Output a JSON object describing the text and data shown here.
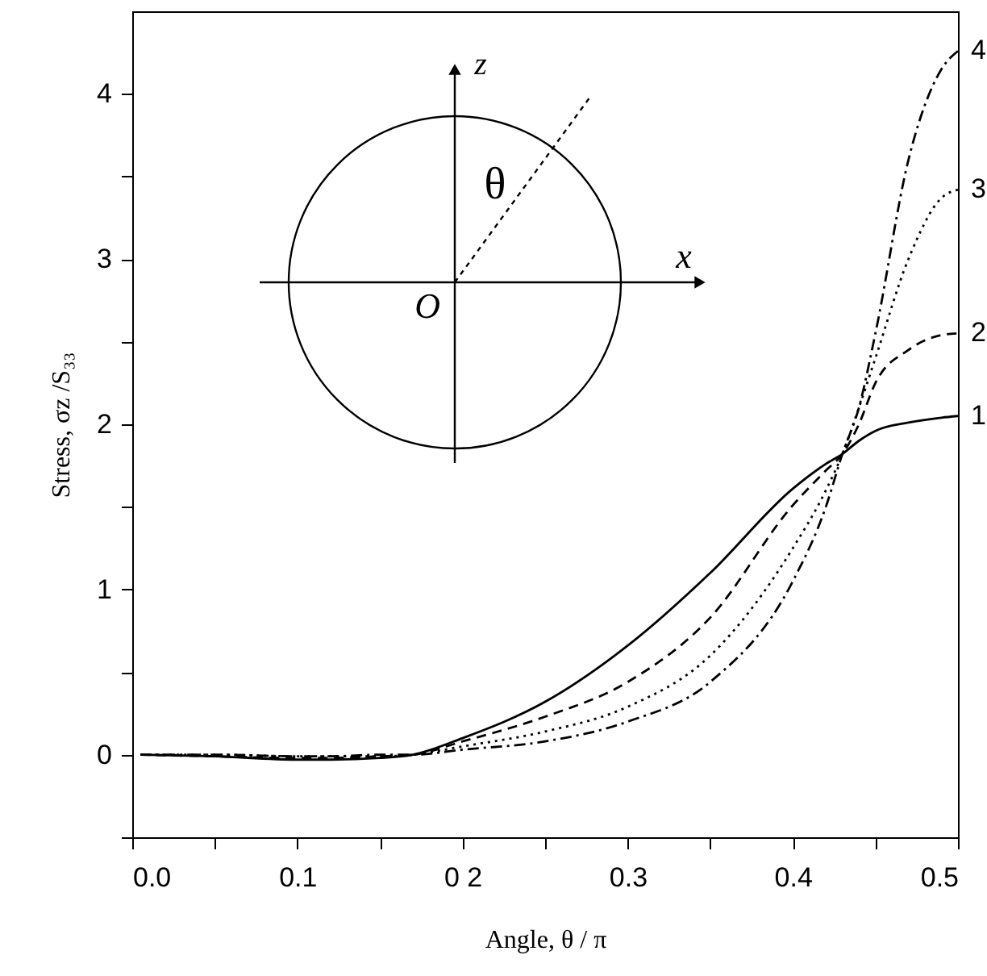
{
  "chart_data": {
    "type": "line",
    "xlabel": "Angle, θ / π",
    "ylabel": "Stress, σz /S₃₃",
    "x": [
      0.005,
      0.05,
      0.1,
      0.12,
      0.15,
      0.17,
      0.2,
      0.25,
      0.3,
      0.35,
      0.4,
      0.42,
      0.43,
      0.44,
      0.45,
      0.47,
      0.49,
      0.5
    ],
    "series": [
      {
        "name": "1",
        "color": "#000000",
        "line_style": "solid",
        "values": [
          0,
          -0.01,
          -0.03,
          -0.03,
          -0.02,
          0,
          0.1,
          0.32,
          0.66,
          1.1,
          1.61,
          1.76,
          1.82,
          1.9,
          1.96,
          2.01,
          2.04,
          2.05
        ]
      },
      {
        "name": "2",
        "color": "#000000",
        "line_style": "dashed",
        "values": [
          0,
          -0.01,
          -0.02,
          -0.02,
          -0.01,
          0,
          0.08,
          0.23,
          0.44,
          0.83,
          1.51,
          1.72,
          1.82,
          2.0,
          2.25,
          2.45,
          2.54,
          2.55
        ]
      },
      {
        "name": "3",
        "color": "#000000",
        "line_style": "dotted",
        "values": [
          0,
          0,
          -0.01,
          -0.01,
          -0.01,
          0,
          0.05,
          0.14,
          0.29,
          0.6,
          1.25,
          1.6,
          1.82,
          2.1,
          2.4,
          3.0,
          3.37,
          3.42
        ]
      },
      {
        "name": "4",
        "color": "#000000",
        "line_style": "dashdot",
        "values": [
          0,
          0,
          -0.01,
          -0.01,
          0,
          0,
          0.03,
          0.08,
          0.2,
          0.44,
          1.05,
          1.5,
          1.82,
          2.1,
          2.55,
          3.6,
          4.15,
          4.26
        ]
      }
    ],
    "xlim": [
      0,
      0.5
    ],
    "xticks": [
      {
        "value": 0,
        "label": "0.0"
      },
      {
        "value": 0.05,
        "label": null
      },
      0.1,
      {
        "value": 0.15,
        "label": null
      },
      {
        "value": 0.2,
        "label": "0 2"
      },
      {
        "value": 0.25,
        "label": null
      },
      0.3,
      {
        "value": 0.35,
        "label": null
      },
      0.4,
      {
        "value": 0.45,
        "label": null
      },
      0.5
    ],
    "ylim": [
      -0.5,
      4.5
    ],
    "yticks": [
      {
        "value": -0.5,
        "label": null
      },
      0,
      {
        "value": 0.5,
        "label": null
      },
      1,
      {
        "value": 1.5,
        "label": null
      },
      2,
      {
        "value": 2.5,
        "label": null
      },
      3,
      {
        "value": 3.5,
        "label": null
      },
      4
    ],
    "annotations": [
      "z",
      "x",
      "O",
      "θ"
    ],
    "grid": false,
    "marker": "none"
  }
}
